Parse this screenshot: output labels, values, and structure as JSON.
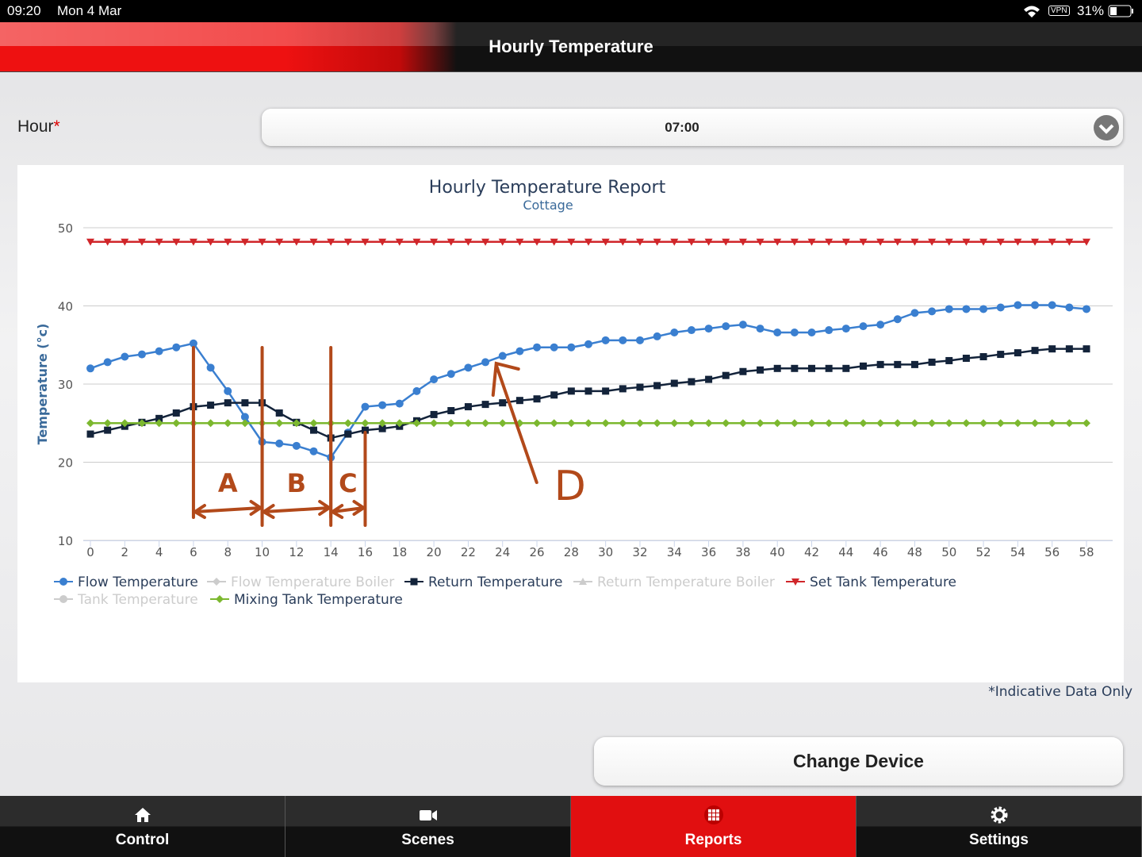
{
  "status_bar": {
    "time": "09:20",
    "date": "Mon 4 Mar",
    "vpn": "VPN",
    "battery": "31%"
  },
  "header": {
    "title": "Hourly Temperature"
  },
  "form": {
    "label": "Hour",
    "required": "*",
    "value": "07:00"
  },
  "chart_data": {
    "type": "line",
    "title": "Hourly Temperature Report",
    "subtitle": "Cottage",
    "y_label": "Temperature (°c)",
    "x": [
      0,
      1,
      2,
      3,
      4,
      5,
      6,
      7,
      8,
      9,
      10,
      11,
      12,
      13,
      14,
      15,
      16,
      17,
      18,
      19,
      20,
      21,
      22,
      23,
      24,
      25,
      26,
      27,
      28,
      29,
      30,
      31,
      32,
      33,
      34,
      35,
      36,
      37,
      38,
      39,
      40,
      41,
      42,
      43,
      44,
      45,
      46,
      47,
      48,
      49,
      50,
      51,
      52,
      53,
      54,
      55,
      56,
      57,
      58
    ],
    "xlim": [
      0,
      58
    ],
    "xticks": [
      0,
      2,
      4,
      6,
      8,
      10,
      12,
      14,
      16,
      18,
      20,
      22,
      24,
      26,
      28,
      30,
      32,
      34,
      36,
      38,
      40,
      42,
      44,
      46,
      48,
      50,
      52,
      54,
      56,
      58
    ],
    "ylim": [
      10,
      50
    ],
    "yticks": [
      10,
      20,
      30,
      40,
      50
    ],
    "grid": true,
    "series": [
      {
        "name": "Flow Temperature",
        "color": "#3a7fd0",
        "marker": "circle",
        "visible": true,
        "values": [
          32.0,
          32.8,
          33.5,
          33.8,
          34.2,
          34.7,
          35.2,
          32.1,
          29.1,
          25.8,
          22.6,
          22.4,
          22.1,
          21.4,
          20.6,
          23.8,
          27.1,
          27.3,
          27.5,
          29.1,
          30.6,
          31.3,
          32.1,
          32.8,
          33.6,
          34.2,
          34.7,
          34.7,
          34.7,
          35.1,
          35.6,
          35.6,
          35.6,
          36.1,
          36.6,
          36.9,
          37.1,
          37.4,
          37.6,
          37.1,
          36.6,
          36.6,
          36.6,
          36.9,
          37.1,
          37.4,
          37.6,
          38.3,
          39.1,
          39.3,
          39.6,
          39.6,
          39.6,
          39.8,
          40.1,
          40.1,
          40.1,
          39.8,
          39.6
        ]
      },
      {
        "name": "Flow Temperature Boiler",
        "color": "#cccccc",
        "marker": "diamond",
        "visible": false
      },
      {
        "name": "Return Temperature",
        "color": "#13233a",
        "marker": "square",
        "visible": true,
        "values": [
          23.6,
          24.1,
          24.6,
          25.1,
          25.6,
          26.3,
          27.1,
          27.3,
          27.6,
          27.6,
          27.6,
          26.3,
          25.1,
          24.1,
          23.1,
          23.6,
          24.1,
          24.3,
          24.6,
          25.3,
          26.1,
          26.6,
          27.1,
          27.4,
          27.6,
          27.9,
          28.1,
          28.6,
          29.1,
          29.1,
          29.1,
          29.4,
          29.6,
          29.8,
          30.1,
          30.3,
          30.6,
          31.1,
          31.6,
          31.8,
          32.0,
          32.0,
          32.0,
          32.0,
          32.0,
          32.3,
          32.5,
          32.5,
          32.5,
          32.8,
          33.0,
          33.3,
          33.5,
          33.8,
          34.0,
          34.3,
          34.5,
          34.5,
          34.5
        ]
      },
      {
        "name": "Return Temperature Boiler",
        "color": "#cccccc",
        "marker": "triangle",
        "visible": false
      },
      {
        "name": "Set Tank Temperature",
        "color": "#d0262a",
        "marker": "triangle-down",
        "visible": true,
        "values": [
          48.2,
          48.2,
          48.2,
          48.2,
          48.2,
          48.2,
          48.2,
          48.2,
          48.2,
          48.2,
          48.2,
          48.2,
          48.2,
          48.2,
          48.2,
          48.2,
          48.2,
          48.2,
          48.2,
          48.2,
          48.2,
          48.2,
          48.2,
          48.2,
          48.2,
          48.2,
          48.2,
          48.2,
          48.2,
          48.2,
          48.2,
          48.2,
          48.2,
          48.2,
          48.2,
          48.2,
          48.2,
          48.2,
          48.2,
          48.2,
          48.2,
          48.2,
          48.2,
          48.2,
          48.2,
          48.2,
          48.2,
          48.2,
          48.2,
          48.2,
          48.2,
          48.2,
          48.2,
          48.2,
          48.2,
          48.2,
          48.2,
          48.2,
          48.2
        ]
      },
      {
        "name": "Tank Temperature",
        "color": "#cccccc",
        "marker": "circle",
        "visible": false
      },
      {
        "name": "Mixing Tank Temperature",
        "color": "#7cb82f",
        "marker": "diamond",
        "visible": true,
        "values": [
          25,
          25,
          25,
          25,
          25,
          25,
          25,
          25,
          25,
          25,
          25,
          25,
          25,
          25,
          25,
          25,
          25,
          25,
          25,
          25,
          25,
          25,
          25,
          25,
          25,
          25,
          25,
          25,
          25,
          25,
          25,
          25,
          25,
          25,
          25,
          25,
          25,
          25,
          25,
          25,
          25,
          25,
          25,
          25,
          25,
          25,
          25,
          25,
          25,
          25,
          25,
          25,
          25,
          25,
          25,
          25,
          25,
          25,
          25
        ]
      }
    ],
    "annotations": [
      {
        "text": "A",
        "x": [
          6,
          10
        ]
      },
      {
        "text": "B",
        "x": [
          10,
          14
        ]
      },
      {
        "text": "C",
        "x": [
          14,
          16
        ]
      },
      {
        "text": "D",
        "x": [
          24
        ]
      }
    ],
    "note": "*Indicative Data Only"
  },
  "button": {
    "label": "Change Device"
  },
  "nav": {
    "items": [
      "Control",
      "Scenes",
      "Reports",
      "Settings"
    ],
    "active": 2
  }
}
